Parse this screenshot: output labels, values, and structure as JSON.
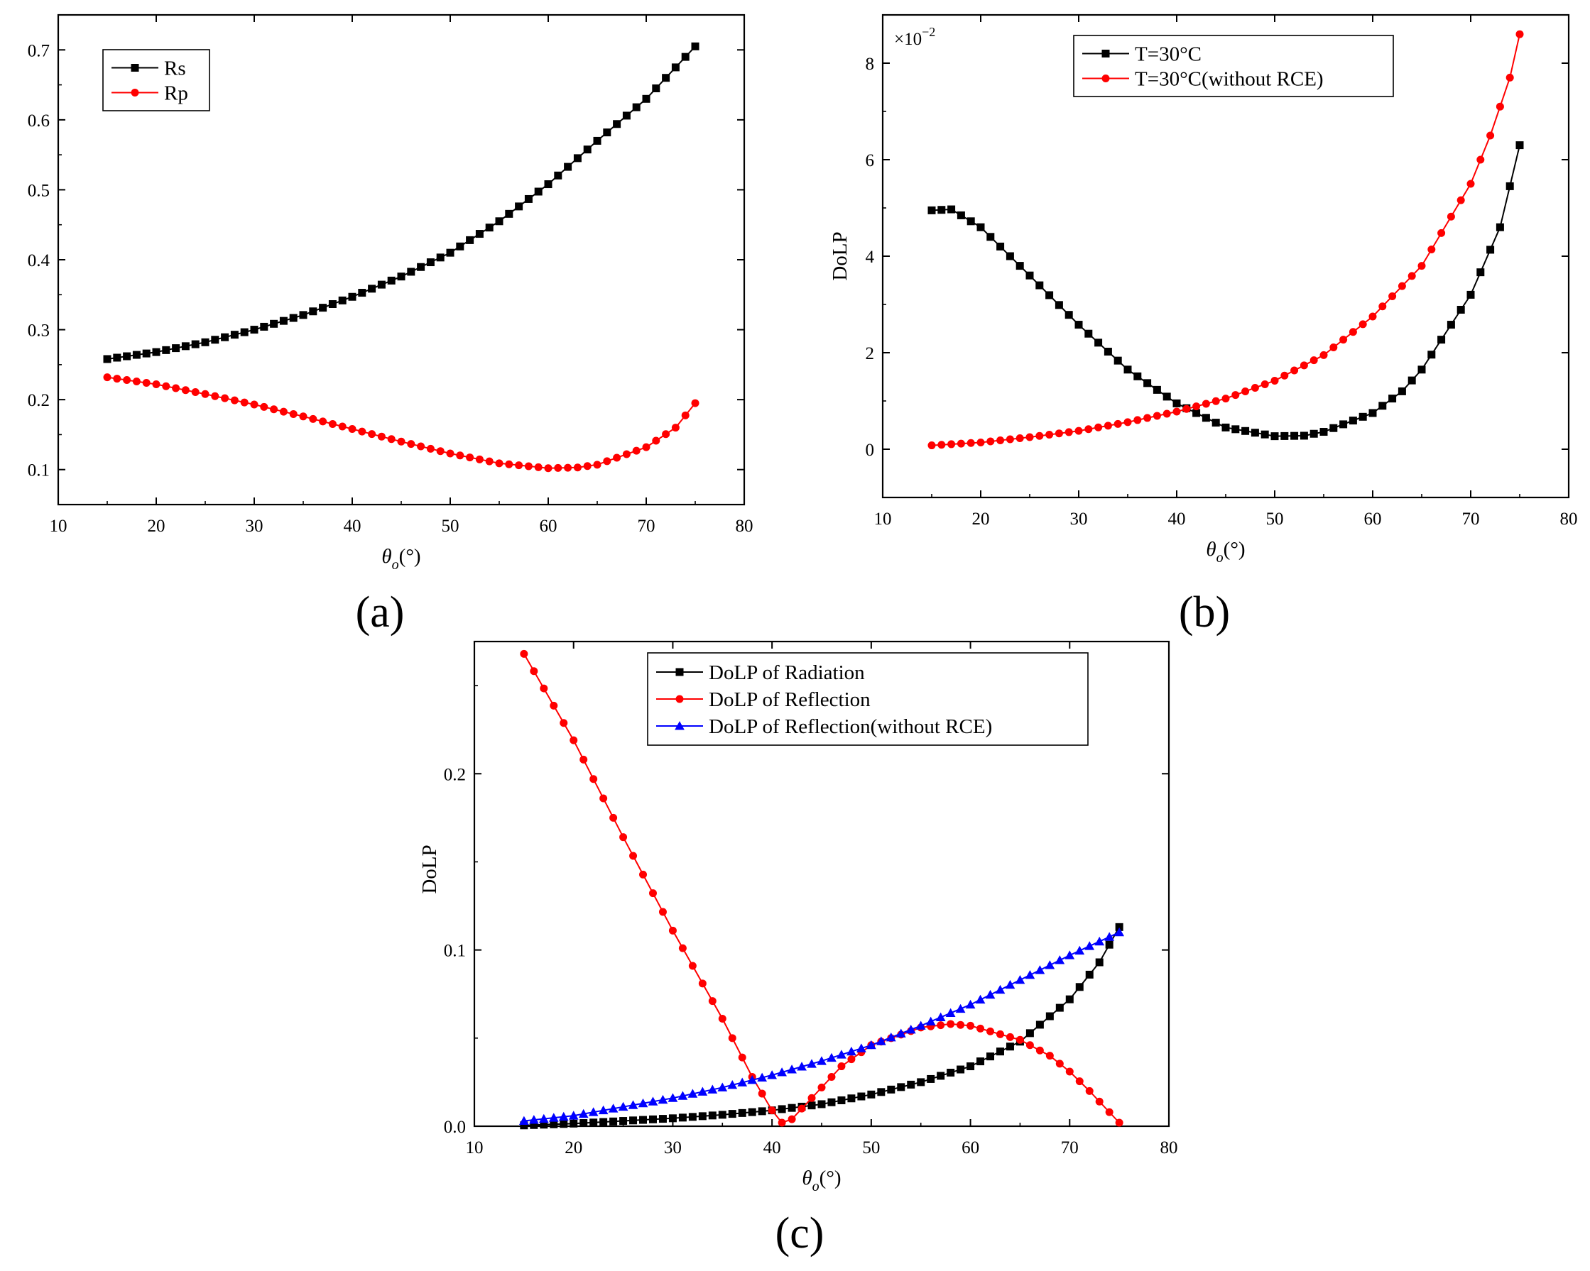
{
  "figure": {
    "panel_labels": [
      "(a)",
      "(b)",
      "(c)"
    ]
  },
  "chart_data": [
    {
      "type": "line",
      "panel": "(a)",
      "xlabel": "θ_o(°)",
      "ylabel": "",
      "xlim": [
        10,
        80
      ],
      "ylim": [
        0.05,
        0.75
      ],
      "xticks": [
        10,
        20,
        30,
        40,
        50,
        60,
        70,
        80
      ],
      "yticks": [
        0.1,
        0.2,
        0.3,
        0.4,
        0.5,
        0.6,
        0.7
      ],
      "ytick_labels": [
        "0.1",
        "0.2",
        "0.3",
        "0.4",
        "0.5",
        "0.6",
        "0.7"
      ],
      "exponent_label": "",
      "legend_position": "top-left",
      "series": [
        {
          "name": "Rs",
          "color": "#000000",
          "marker": "square",
          "points": [
            [
              15,
              0.258
            ],
            [
              20,
              0.268
            ],
            [
              25,
              0.282
            ],
            [
              30,
              0.3
            ],
            [
              35,
              0.321
            ],
            [
              40,
              0.347
            ],
            [
              45,
              0.376
            ],
            [
              50,
              0.41
            ],
            [
              55,
              0.455
            ],
            [
              60,
              0.508
            ],
            [
              65,
              0.57
            ],
            [
              70,
              0.63
            ],
            [
              75,
              0.705
            ]
          ]
        },
        {
          "name": "Rp",
          "color": "#ff0000",
          "marker": "circle",
          "points": [
            [
              15,
              0.232
            ],
            [
              20,
              0.222
            ],
            [
              25,
              0.208
            ],
            [
              30,
              0.193
            ],
            [
              35,
              0.176
            ],
            [
              40,
              0.158
            ],
            [
              45,
              0.14
            ],
            [
              50,
              0.123
            ],
            [
              55,
              0.109
            ],
            [
              60,
              0.102
            ],
            [
              63,
              0.103
            ],
            [
              65,
              0.107
            ],
            [
              70,
              0.132
            ],
            [
              73,
              0.16
            ],
            [
              75,
              0.195
            ]
          ]
        }
      ]
    },
    {
      "type": "line",
      "panel": "(b)",
      "xlabel": "θ_o(°)",
      "ylabel": "DoLP",
      "xlim": [
        10,
        80
      ],
      "ylim": [
        -1,
        9
      ],
      "xticks": [
        10,
        20,
        30,
        40,
        50,
        60,
        70,
        80
      ],
      "yticks": [
        0,
        2,
        4,
        6,
        8
      ],
      "ytick_labels": [
        "0",
        "2",
        "4",
        "6",
        "8"
      ],
      "exponent_label": "×10",
      "exponent_power": "−2",
      "legend_position": "top-center",
      "series": [
        {
          "name": "T=30°C",
          "color": "#000000",
          "marker": "square",
          "points": [
            [
              15,
              4.95
            ],
            [
              17,
              4.97
            ],
            [
              20,
              4.6
            ],
            [
              25,
              3.6
            ],
            [
              30,
              2.58
            ],
            [
              35,
              1.65
            ],
            [
              40,
              0.95
            ],
            [
              45,
              0.45
            ],
            [
              50,
              0.27
            ],
            [
              53,
              0.28
            ],
            [
              55,
              0.36
            ],
            [
              60,
              0.75
            ],
            [
              63,
              1.2
            ],
            [
              65,
              1.65
            ],
            [
              70,
              3.2
            ],
            [
              73,
              4.6
            ],
            [
              75,
              6.3
            ]
          ]
        },
        {
          "name": "T=30°C(without RCE)",
          "color": "#ff0000",
          "marker": "circle",
          "points": [
            [
              15,
              0.08
            ],
            [
              20,
              0.14
            ],
            [
              25,
              0.25
            ],
            [
              30,
              0.38
            ],
            [
              35,
              0.56
            ],
            [
              40,
              0.78
            ],
            [
              45,
              1.05
            ],
            [
              50,
              1.42
            ],
            [
              55,
              1.95
            ],
            [
              60,
              2.75
            ],
            [
              65,
              3.8
            ],
            [
              70,
              5.5
            ],
            [
              72,
              6.5
            ],
            [
              74,
              7.7
            ],
            [
              75,
              8.6
            ]
          ]
        }
      ]
    },
    {
      "type": "line",
      "panel": "(c)",
      "xlabel": "θ_o(°)",
      "ylabel": "DoLP",
      "xlim": [
        10,
        80
      ],
      "ylim": [
        0,
        0.275
      ],
      "xticks": [
        10,
        20,
        30,
        40,
        50,
        60,
        70,
        80
      ],
      "yticks": [
        0.0,
        0.1,
        0.2
      ],
      "ytick_labels": [
        "0.0",
        "0.1",
        "0.2"
      ],
      "exponent_label": "",
      "legend_position": "top-right",
      "series": [
        {
          "name": "DoLP of  Radiation",
          "color": "#000000",
          "marker": "square",
          "points": [
            [
              15,
              0.0005
            ],
            [
              20,
              0.0015
            ],
            [
              25,
              0.003
            ],
            [
              30,
              0.0045
            ],
            [
              35,
              0.0065
            ],
            [
              40,
              0.009
            ],
            [
              45,
              0.0125
            ],
            [
              50,
              0.018
            ],
            [
              55,
              0.025
            ],
            [
              60,
              0.034
            ],
            [
              65,
              0.048
            ],
            [
              70,
              0.072
            ],
            [
              73,
              0.093
            ],
            [
              75,
              0.113
            ]
          ]
        },
        {
          "name": "DoLP of  Reflection",
          "color": "#ff0000",
          "marker": "circle",
          "points": [
            [
              15,
              0.268
            ],
            [
              20,
              0.219
            ],
            [
              25,
              0.164
            ],
            [
              30,
              0.111
            ],
            [
              35,
              0.061
            ],
            [
              38,
              0.028
            ],
            [
              40,
              0.009
            ],
            [
              41,
              0.002
            ],
            [
              42,
              0.004
            ],
            [
              44,
              0.016
            ],
            [
              47,
              0.034
            ],
            [
              50,
              0.046
            ],
            [
              55,
              0.056
            ],
            [
              58,
              0.058
            ],
            [
              60,
              0.057
            ],
            [
              65,
              0.049
            ],
            [
              68,
              0.04
            ],
            [
              70,
              0.031
            ],
            [
              72,
              0.02
            ],
            [
              75,
              0.002
            ]
          ]
        },
        {
          "name": "DoLP of  Reflection(without RCE)",
          "color": "#0000ff",
          "marker": "triangle",
          "points": [
            [
              15,
              0.003
            ],
            [
              20,
              0.006
            ],
            [
              25,
              0.011
            ],
            [
              30,
              0.016
            ],
            [
              35,
              0.022
            ],
            [
              40,
              0.029
            ],
            [
              45,
              0.037
            ],
            [
              50,
              0.046
            ],
            [
              55,
              0.057
            ],
            [
              60,
              0.069
            ],
            [
              65,
              0.083
            ],
            [
              70,
              0.097
            ],
            [
              75,
              0.11
            ]
          ]
        }
      ]
    }
  ]
}
